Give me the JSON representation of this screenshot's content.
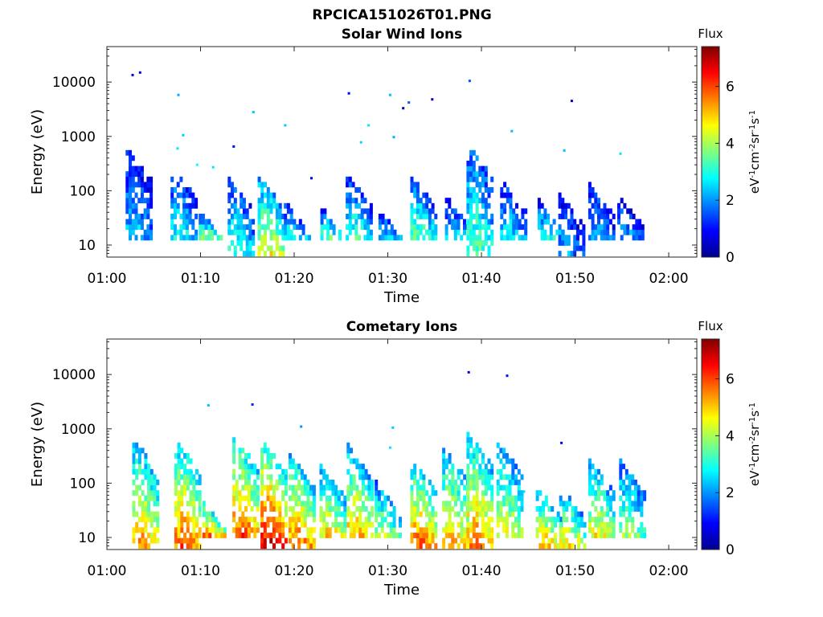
{
  "figure": {
    "main_title": "RPCICA151026T01.PNG"
  },
  "colormap": "jet",
  "chart_data": [
    {
      "type": "heatmap",
      "title": "Solar Wind Ions",
      "xlabel": "Time",
      "ylabel": "Energy (eV)",
      "x_ticks": [
        "01:00",
        "01:10",
        "01:20",
        "01:30",
        "01:40",
        "01:50",
        "02:00"
      ],
      "x_range_minutes": [
        0,
        63
      ],
      "y_scale": "log",
      "y_ticks": [
        10,
        100,
        1000,
        10000
      ],
      "y_range": [
        6,
        45000
      ],
      "colorbar": {
        "label": "Flux",
        "unit_label": "eV-1cm-2sr-1s-1",
        "range": [
          0,
          7.4
        ],
        "ticks": [
          0,
          2,
          4,
          6
        ]
      },
      "grid": false,
      "bursts": [
        {
          "t": 2.6,
          "emin": 12,
          "emax": 550,
          "peak": 2.6
        },
        {
          "t": 7.4,
          "emin": 12,
          "emax": 250,
          "peak": 3.0
        },
        {
          "t": 10.4,
          "emin": 12,
          "emax": 40,
          "peak": 3.8
        },
        {
          "t": 13.5,
          "emin": 6,
          "emax": 150,
          "peak": 3.3
        },
        {
          "t": 16.7,
          "emin": 6,
          "emax": 170,
          "peak": 4.8
        },
        {
          "t": 19.5,
          "emin": 12,
          "emax": 60,
          "peak": 3.0
        },
        {
          "t": 23.4,
          "emin": 12,
          "emax": 45,
          "peak": 3.5
        },
        {
          "t": 26.1,
          "emin": 12,
          "emax": 180,
          "peak": 3.4
        },
        {
          "t": 29.6,
          "emin": 12,
          "emax": 40,
          "peak": 2.7
        },
        {
          "t": 33.0,
          "emin": 12,
          "emax": 170,
          "peak": 3.6
        },
        {
          "t": 36.7,
          "emin": 12,
          "emax": 70,
          "peak": 2.8
        },
        {
          "t": 39.0,
          "emin": 6,
          "emax": 650,
          "peak": 3.6
        },
        {
          "t": 42.6,
          "emin": 12,
          "emax": 140,
          "peak": 2.8
        },
        {
          "t": 46.6,
          "emin": 12,
          "emax": 60,
          "peak": 3.2
        },
        {
          "t": 48.8,
          "emin": 6,
          "emax": 80,
          "peak": 2.2
        },
        {
          "t": 52.0,
          "emin": 12,
          "emax": 120,
          "peak": 2.4
        },
        {
          "t": 55.1,
          "emin": 12,
          "emax": 80,
          "peak": 2.3
        }
      ],
      "dots": [
        {
          "t": 2.7,
          "e": 13500,
          "v": 0.8
        },
        {
          "t": 3.5,
          "e": 15000,
          "v": 0.6
        },
        {
          "t": 7.6,
          "e": 5800,
          "v": 2.2
        },
        {
          "t": 8.1,
          "e": 1050,
          "v": 2.4
        },
        {
          "t": 7.5,
          "e": 600,
          "v": 2.6
        },
        {
          "t": 9.6,
          "e": 300,
          "v": 2.8
        },
        {
          "t": 11.3,
          "e": 270,
          "v": 2.6
        },
        {
          "t": 13.5,
          "e": 650,
          "v": 1.0
        },
        {
          "t": 15.6,
          "e": 2800,
          "v": 2.4
        },
        {
          "t": 19.0,
          "e": 1600,
          "v": 2.4
        },
        {
          "t": 21.8,
          "e": 170,
          "v": 0.8
        },
        {
          "t": 25.8,
          "e": 6200,
          "v": 0.9
        },
        {
          "t": 27.1,
          "e": 780,
          "v": 2.5
        },
        {
          "t": 27.9,
          "e": 1600,
          "v": 2.6
        },
        {
          "t": 30.2,
          "e": 5800,
          "v": 2.3
        },
        {
          "t": 30.6,
          "e": 970,
          "v": 2.2
        },
        {
          "t": 31.6,
          "e": 3300,
          "v": 0.3
        },
        {
          "t": 32.2,
          "e": 4200,
          "v": 1.6
        },
        {
          "t": 34.7,
          "e": 4800,
          "v": 0.5
        },
        {
          "t": 38.7,
          "e": 10500,
          "v": 1.5
        },
        {
          "t": 43.2,
          "e": 1250,
          "v": 2.3
        },
        {
          "t": 48.8,
          "e": 550,
          "v": 2.3
        },
        {
          "t": 49.6,
          "e": 4500,
          "v": 0.4
        },
        {
          "t": 54.8,
          "e": 480,
          "v": 2.6
        }
      ]
    },
    {
      "type": "heatmap",
      "title": "Cometary Ions",
      "xlabel": "Time",
      "ylabel": "Energy (eV)",
      "x_ticks": [
        "01:00",
        "01:10",
        "01:20",
        "01:30",
        "01:40",
        "01:50",
        "02:00"
      ],
      "x_range_minutes": [
        0,
        63
      ],
      "y_scale": "log",
      "y_ticks": [
        10,
        100,
        1000,
        10000
      ],
      "y_range": [
        6,
        45000
      ],
      "colorbar": {
        "label": "Flux",
        "unit_label": "eV-1cm-2sr-1s-1",
        "range": [
          0,
          7.4
        ],
        "ticks": [
          0,
          2,
          4,
          6
        ]
      },
      "grid": false,
      "bursts": [
        {
          "t": 3.3,
          "emin": 6,
          "emax": 600,
          "peak": 5.5
        },
        {
          "t": 7.8,
          "emin": 6,
          "emax": 550,
          "peak": 6.0
        },
        {
          "t": 10.8,
          "emin": 8,
          "emax": 40,
          "peak": 6.3
        },
        {
          "t": 14.0,
          "emin": 8,
          "emax": 650,
          "peak": 6.2
        },
        {
          "t": 17.0,
          "emin": 6,
          "emax": 550,
          "peak": 6.9
        },
        {
          "t": 20.0,
          "emin": 6,
          "emax": 300,
          "peak": 6.0
        },
        {
          "t": 23.3,
          "emin": 8,
          "emax": 200,
          "peak": 5.2
        },
        {
          "t": 26.2,
          "emin": 8,
          "emax": 450,
          "peak": 5.6
        },
        {
          "t": 29.2,
          "emin": 8,
          "emax": 100,
          "peak": 4.5
        },
        {
          "t": 33.0,
          "emin": 6,
          "emax": 250,
          "peak": 6.0
        },
        {
          "t": 36.4,
          "emin": 6,
          "emax": 400,
          "peak": 5.4
        },
        {
          "t": 39.0,
          "emin": 6,
          "emax": 800,
          "peak": 5.7
        },
        {
          "t": 42.2,
          "emin": 8,
          "emax": 550,
          "peak": 4.8
        },
        {
          "t": 46.4,
          "emin": 6,
          "emax": 80,
          "peak": 5.3
        },
        {
          "t": 48.9,
          "emin": 6,
          "emax": 80,
          "peak": 5.0
        },
        {
          "t": 52.0,
          "emin": 8,
          "emax": 250,
          "peak": 4.9
        },
        {
          "t": 55.3,
          "emin": 8,
          "emax": 250,
          "peak": 4.2
        }
      ],
      "dots": [
        {
          "t": 10.8,
          "e": 2700,
          "v": 2.3
        },
        {
          "t": 15.5,
          "e": 2800,
          "v": 1.2
        },
        {
          "t": 9.0,
          "e": 160,
          "v": 2.6
        },
        {
          "t": 30.5,
          "e": 1050,
          "v": 2.4
        },
        {
          "t": 30.2,
          "e": 450,
          "v": 2.6
        },
        {
          "t": 38.6,
          "e": 11000,
          "v": 0.8
        },
        {
          "t": 42.7,
          "e": 9500,
          "v": 1.0
        },
        {
          "t": 48.5,
          "e": 550,
          "v": 0.8
        },
        {
          "t": 20.7,
          "e": 1100,
          "v": 2.0
        },
        {
          "t": 44.5,
          "e": 70,
          "v": 2.5
        }
      ]
    }
  ]
}
